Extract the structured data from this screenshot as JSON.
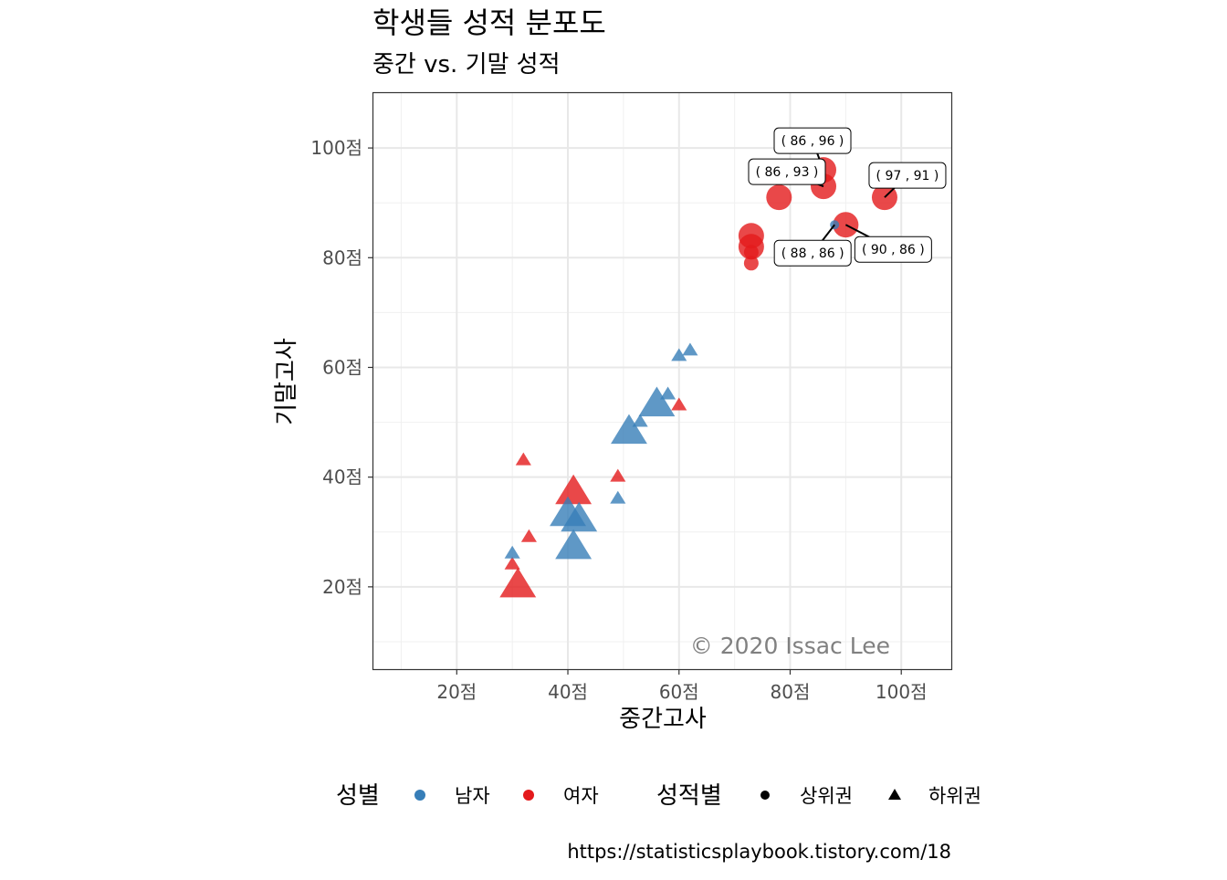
{
  "chart_data": {
    "type": "scatter",
    "title": "학생들 성적 분포도",
    "subtitle": "중간 vs. 기말 성적",
    "xlabel": "중간고사",
    "ylabel": "기말고사",
    "xlim": [
      5,
      109
    ],
    "ylim": [
      5,
      110
    ],
    "x_ticks": [
      20,
      40,
      60,
      80,
      100
    ],
    "y_ticks": [
      20,
      40,
      60,
      80,
      100
    ],
    "x_tick_labels": [
      "20점",
      "40점",
      "60점",
      "80점",
      "100점"
    ],
    "y_tick_labels": [
      "20점",
      "40점",
      "60점",
      "80점",
      "100점"
    ],
    "grid": true,
    "legend_position": "bottom",
    "legend": {
      "color_title": "성별",
      "color_items": [
        {
          "label": "남자",
          "color": "#377EB8"
        },
        {
          "label": "여자",
          "color": "#E41A1C"
        }
      ],
      "shape_title": "성적별",
      "shape_items": [
        {
          "label": "상위권",
          "shape": "circle"
        },
        {
          "label": "하위권",
          "shape": "triangle"
        }
      ]
    },
    "points": [
      {
        "x": 86,
        "y": 96,
        "gender": "여자",
        "group": "상위권",
        "size": 3
      },
      {
        "x": 86,
        "y": 93,
        "gender": "여자",
        "group": "상위권",
        "size": 3
      },
      {
        "x": 97,
        "y": 91,
        "gender": "여자",
        "group": "상위권",
        "size": 3
      },
      {
        "x": 78,
        "y": 91,
        "gender": "여자",
        "group": "상위권",
        "size": 3
      },
      {
        "x": 90,
        "y": 86,
        "gender": "여자",
        "group": "상위권",
        "size": 3
      },
      {
        "x": 73,
        "y": 84,
        "gender": "여자",
        "group": "상위권",
        "size": 3
      },
      {
        "x": 73,
        "y": 82,
        "gender": "여자",
        "group": "상위권",
        "size": 3
      },
      {
        "x": 73,
        "y": 81,
        "gender": "여자",
        "group": "상위권",
        "size": 1
      },
      {
        "x": 73,
        "y": 79,
        "gender": "여자",
        "group": "상위권",
        "size": 1
      },
      {
        "x": 88,
        "y": 86,
        "gender": "남자",
        "group": "상위권",
        "size": 0
      },
      {
        "x": 60,
        "y": 53,
        "gender": "여자",
        "group": "하위권",
        "size": 1
      },
      {
        "x": 49,
        "y": 40,
        "gender": "여자",
        "group": "하위권",
        "size": 1
      },
      {
        "x": 41,
        "y": 37,
        "gender": "여자",
        "group": "하위권",
        "size": 3
      },
      {
        "x": 32,
        "y": 43,
        "gender": "여자",
        "group": "하위권",
        "size": 1
      },
      {
        "x": 33,
        "y": 29,
        "gender": "여자",
        "group": "하위권",
        "size": 1
      },
      {
        "x": 30,
        "y": 24,
        "gender": "여자",
        "group": "하위권",
        "size": 1
      },
      {
        "x": 31,
        "y": 20,
        "gender": "여자",
        "group": "하위권",
        "size": 3
      },
      {
        "x": 62,
        "y": 63,
        "gender": "남자",
        "group": "하위권",
        "size": 1
      },
      {
        "x": 60,
        "y": 62,
        "gender": "남자",
        "group": "하위권",
        "size": 1
      },
      {
        "x": 58,
        "y": 55,
        "gender": "남자",
        "group": "하위권",
        "size": 1
      },
      {
        "x": 56,
        "y": 53,
        "gender": "남자",
        "group": "하위권",
        "size": 3
      },
      {
        "x": 53,
        "y": 50,
        "gender": "남자",
        "group": "하위권",
        "size": 1
      },
      {
        "x": 51,
        "y": 48,
        "gender": "남자",
        "group": "하위권",
        "size": 3
      },
      {
        "x": 49,
        "y": 36,
        "gender": "남자",
        "group": "하위권",
        "size": 1
      },
      {
        "x": 40,
        "y": 33,
        "gender": "남자",
        "group": "하위권",
        "size": 3
      },
      {
        "x": 42,
        "y": 32,
        "gender": "남자",
        "group": "하위권",
        "size": 3
      },
      {
        "x": 41,
        "y": 27,
        "gender": "남자",
        "group": "하위권",
        "size": 3
      },
      {
        "x": 30,
        "y": 26,
        "gender": "남자",
        "group": "하위권",
        "size": 1
      }
    ],
    "annotations": [
      {
        "text": "( 86 ,  96 )",
        "x": 86,
        "y": 96
      },
      {
        "text": "( 97 ,  91 )",
        "x": 97,
        "y": 91
      },
      {
        "text": "( 86 ,  93 )",
        "x": 86,
        "y": 93
      },
      {
        "text": "( 88 ,  86 )",
        "x": 88,
        "y": 86
      },
      {
        "text": "( 90 ,  86 )",
        "x": 90,
        "y": 86
      }
    ],
    "watermark": "© 2020 Issac Lee",
    "caption": "https://statisticsplaybook.tistory.com/18"
  }
}
